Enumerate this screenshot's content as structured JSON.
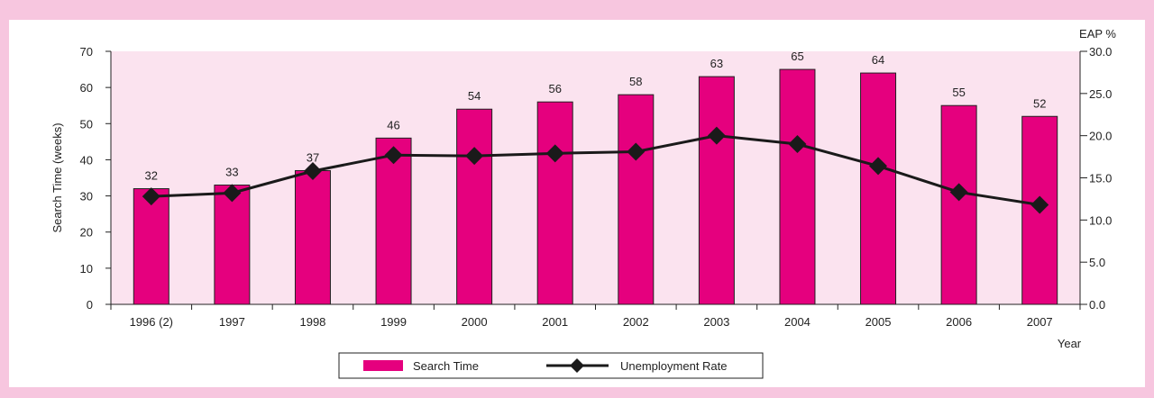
{
  "colors": {
    "page_background": "#f7c6df",
    "plot_background": "#fbe3ef",
    "bar": "#e5007e",
    "line": "#1a1a1a",
    "marker": "#1a1a1a"
  },
  "chart_data": {
    "type": "bar",
    "categories": [
      "1996 (2)",
      "1997",
      "1998",
      "1999",
      "2000",
      "2001",
      "2002",
      "2003",
      "2004",
      "2005",
      "2006",
      "2007"
    ],
    "series": [
      {
        "name": "Search Time",
        "type": "bar",
        "axis": "left",
        "values": [
          32,
          33,
          37,
          46,
          54,
          56,
          58,
          63,
          65,
          64,
          55,
          52
        ],
        "labels": [
          "32",
          "33",
          "37",
          "46",
          "54",
          "56",
          "58",
          "63",
          "65",
          "64",
          "55",
          "52"
        ]
      },
      {
        "name": "Unemployment Rate",
        "type": "line",
        "axis": "right",
        "values": [
          12.8,
          13.2,
          15.8,
          17.7,
          17.6,
          17.9,
          18.1,
          20.0,
          19.0,
          16.4,
          13.3,
          11.8
        ]
      }
    ],
    "ylabel": "Search Time (weeks)",
    "xlabel": "Year",
    "ylabel_right": "EAP %",
    "ylim": [
      0,
      70
    ],
    "yticks": [
      "0",
      "10",
      "20",
      "30",
      "40",
      "50",
      "60",
      "70"
    ],
    "ylim_right": [
      0,
      30
    ],
    "yticks_right": [
      "0.0",
      "5.0",
      "10.0",
      "15.0",
      "20.0",
      "25.0",
      "30.0"
    ],
    "grid": false,
    "legend_position": "bottom-center"
  }
}
